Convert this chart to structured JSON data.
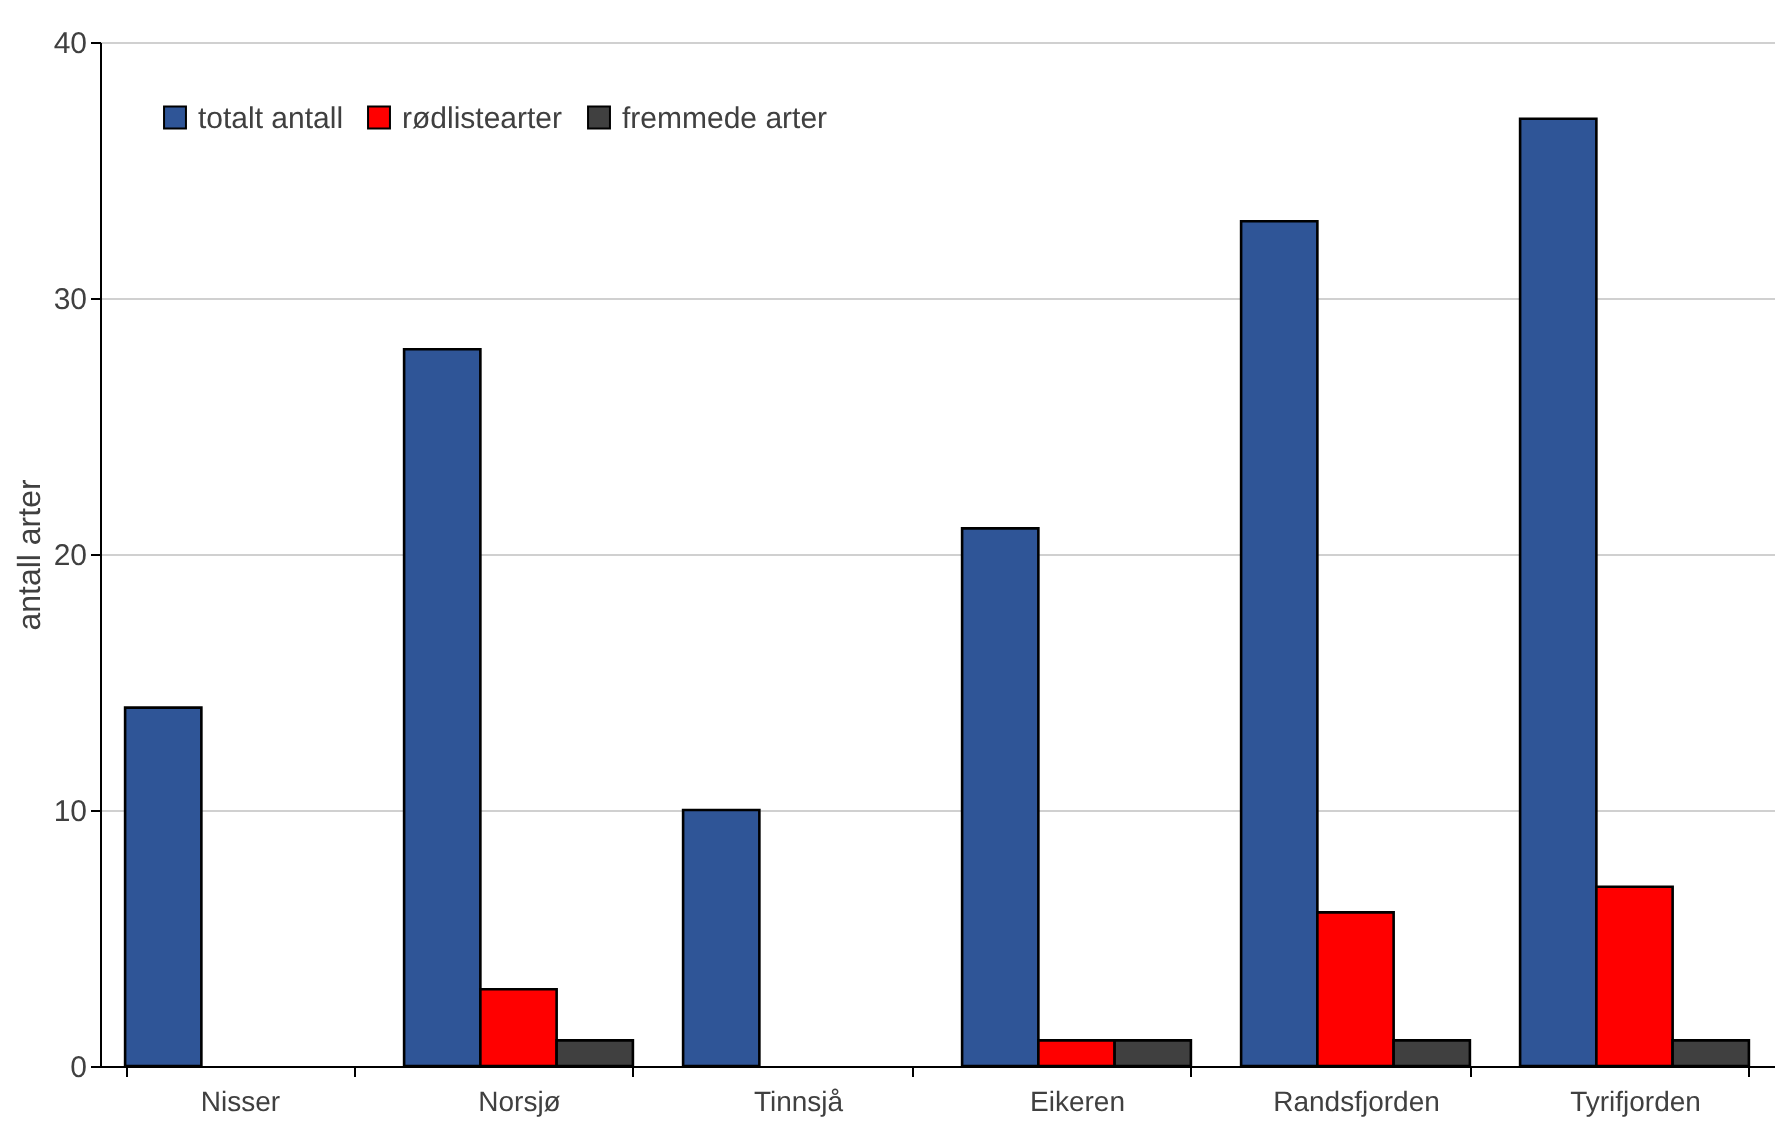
{
  "chart_data": {
    "type": "bar",
    "ylabel": "antall arter",
    "categories": [
      "Nisser",
      "Norsjø",
      "Tinnsjå",
      "Eikeren",
      "Randsfjorden",
      "Tyrifjorden"
    ],
    "series": [
      {
        "name": "totalt antall",
        "color": "#2f5597",
        "values": [
          14,
          28,
          10,
          21,
          33,
          37
        ]
      },
      {
        "name": "rødlistearter",
        "color": "#ff0000",
        "values": [
          null,
          3,
          null,
          1,
          6,
          7
        ]
      },
      {
        "name": "fremmede arter",
        "color": "#404040",
        "values": [
          null,
          1,
          null,
          1,
          1,
          1
        ]
      }
    ],
    "ylim": [
      0,
      40
    ],
    "yticks": [
      0,
      10,
      20,
      30,
      40
    ],
    "grid": "y",
    "legend": "top left"
  }
}
